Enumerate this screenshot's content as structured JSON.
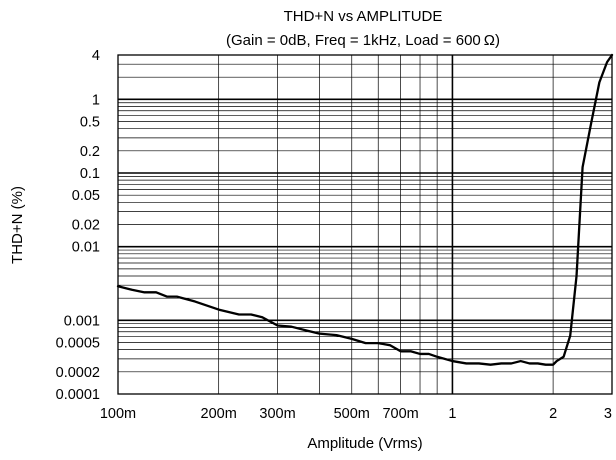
{
  "chart_data": {
    "type": "line",
    "title": "THD+N vs AMPLITUDE",
    "subtitle": "(Gain = 0dB, Freq = 1kHz, Load = 600 Ω)",
    "xlabel": "Amplitude (Vrms)",
    "ylabel": "THD+N (%)",
    "x_scale": "log",
    "y_scale": "log",
    "xlim": [
      0.1,
      3
    ],
    "ylim": [
      0.0001,
      4
    ],
    "grid": true,
    "x_ticks": [
      {
        "value": 0.1,
        "label": "100m"
      },
      {
        "value": 0.2,
        "label": "200m"
      },
      {
        "value": 0.3,
        "label": "300m"
      },
      {
        "value": 0.5,
        "label": "500m"
      },
      {
        "value": 0.7,
        "label": "700m"
      },
      {
        "value": 1,
        "label": "1"
      },
      {
        "value": 2,
        "label": "2"
      },
      {
        "value": 3,
        "label": "3"
      }
    ],
    "y_ticks": [
      {
        "value": 0.0001,
        "label": "0.0001"
      },
      {
        "value": 0.0002,
        "label": "0.0002"
      },
      {
        "value": 0.0005,
        "label": "0.0005"
      },
      {
        "value": 0.001,
        "label": "0.001"
      },
      {
        "value": 0.01,
        "label": "0.01"
      },
      {
        "value": 0.02,
        "label": "0.02"
      },
      {
        "value": 0.05,
        "label": "0.05"
      },
      {
        "value": 0.1,
        "label": "0.1"
      },
      {
        "value": 0.2,
        "label": "0.2"
      },
      {
        "value": 0.5,
        "label": "0.5"
      },
      {
        "value": 1,
        "label": "1"
      },
      {
        "value": 4,
        "label": "4"
      }
    ],
    "series": [
      {
        "x": [
          0.1,
          0.11,
          0.12,
          0.13,
          0.14,
          0.15,
          0.17,
          0.2,
          0.23,
          0.25,
          0.27,
          0.3,
          0.33,
          0.37,
          0.4,
          0.45,
          0.5,
          0.55,
          0.6,
          0.65,
          0.7,
          0.75,
          0.8,
          0.85,
          0.9,
          1.0,
          1.1,
          1.2,
          1.3,
          1.4,
          1.5,
          1.6,
          1.7,
          1.8,
          1.9,
          2.0,
          2.05,
          2.15,
          2.25,
          2.35,
          2.45,
          2.6,
          2.75,
          2.9,
          3.0
        ],
        "y": [
          0.0029,
          0.0026,
          0.0024,
          0.0024,
          0.0021,
          0.0021,
          0.0018,
          0.0014,
          0.0012,
          0.0012,
          0.0011,
          0.00085,
          0.00082,
          0.00072,
          0.00066,
          0.00063,
          0.00056,
          0.00049,
          0.00049,
          0.00046,
          0.00038,
          0.00038,
          0.00035,
          0.00035,
          0.00032,
          0.00028,
          0.00026,
          0.00026,
          0.00025,
          0.00026,
          0.00026,
          0.00028,
          0.00026,
          0.00026,
          0.00025,
          0.00025,
          0.00028,
          0.00032,
          0.00062,
          0.004,
          0.12,
          0.48,
          1.7,
          3.2,
          4.0
        ]
      }
    ]
  }
}
